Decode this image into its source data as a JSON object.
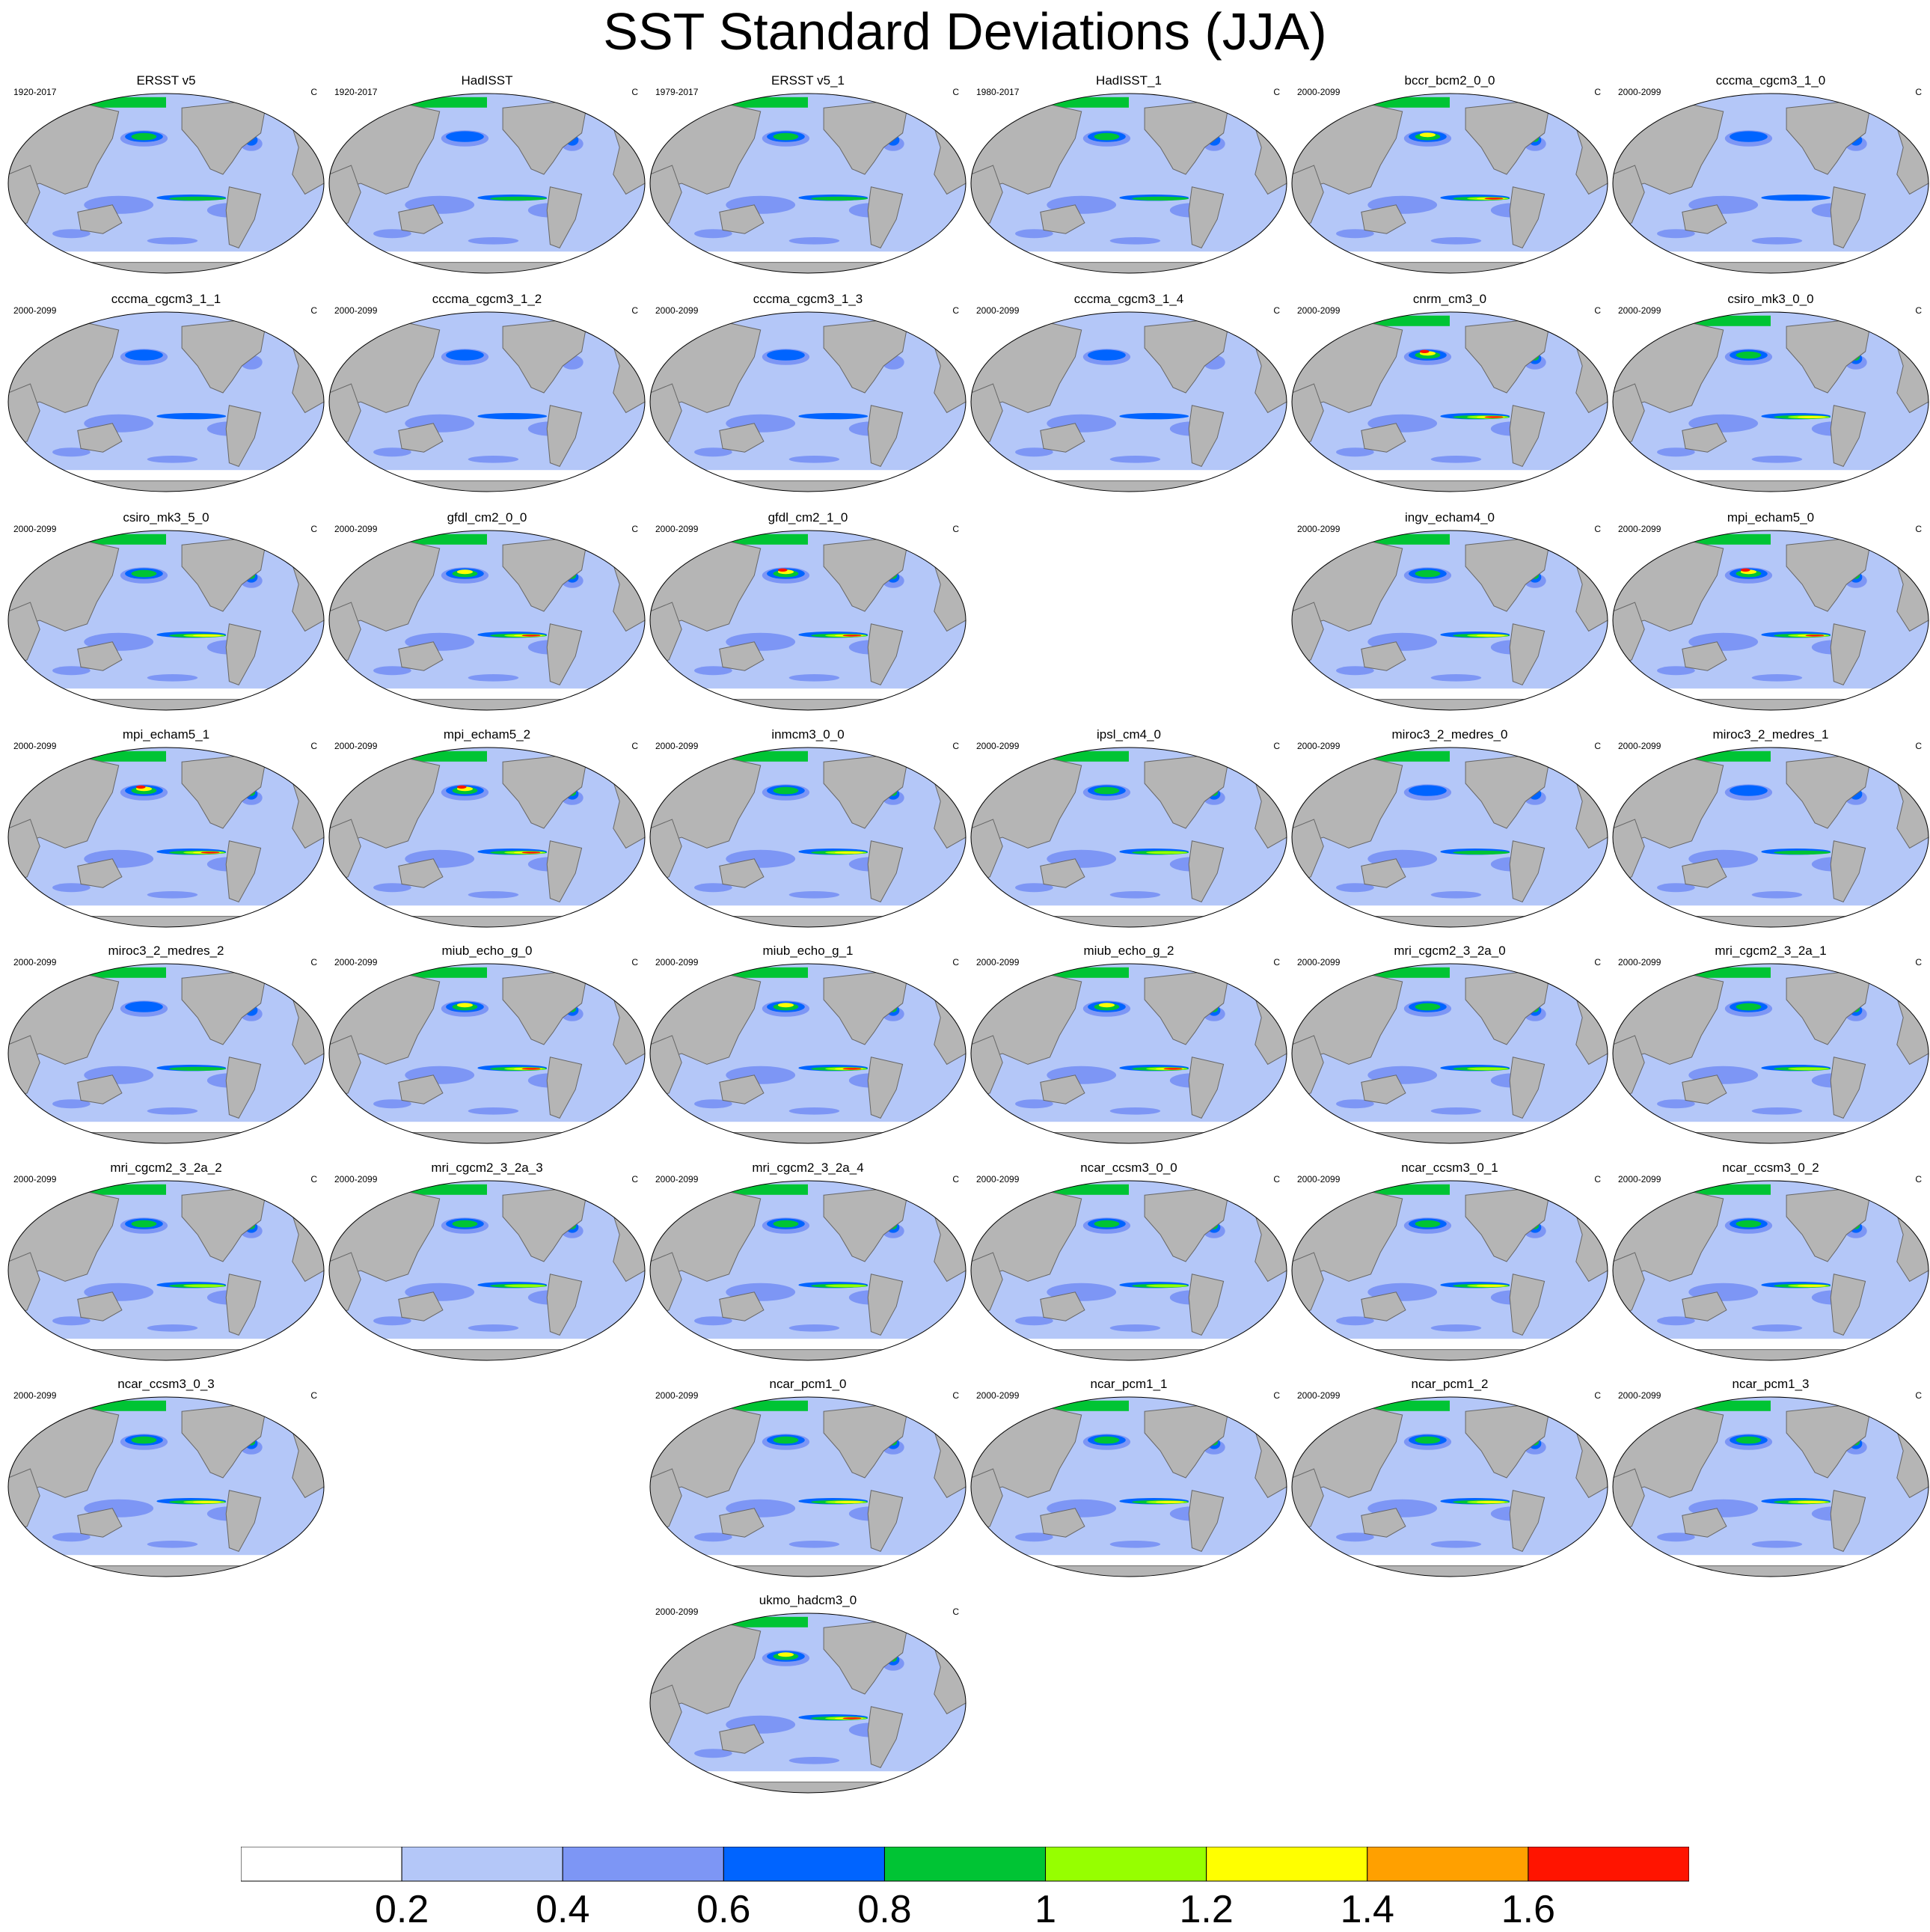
{
  "title": "SST Standard Deviations (JJA)",
  "chart_data": {
    "type": "heatmap",
    "title": "SST Standard Deviations (JJA)",
    "units": "C",
    "colorbar": {
      "levels": [
        0.2,
        0.4,
        0.6,
        0.8,
        1,
        1.2,
        1.4,
        1.6
      ],
      "labels": [
        "0.2",
        "0.4",
        "0.6",
        "0.8",
        "1",
        "1.2",
        "1.4",
        "1.6"
      ],
      "colors": [
        "#ffffff",
        "#b4c7f8",
        "#7d96f5",
        "#0064ff",
        "#00c434",
        "#96ff00",
        "#ffff00",
        "#ffa000",
        "#ff1400"
      ]
    },
    "panels": [
      {
        "name": "ERSST v5",
        "period": "1920-2017",
        "units": "C",
        "row": 0,
        "col": 0,
        "intensity": 0.55
      },
      {
        "name": "HadISST",
        "period": "1920-2017",
        "units": "C",
        "row": 0,
        "col": 1,
        "intensity": 0.45
      },
      {
        "name": "ERSST v5_1",
        "period": "1979-2017",
        "units": "C",
        "row": 0,
        "col": 2,
        "intensity": 0.55
      },
      {
        "name": "HadISST_1",
        "period": "1980-2017",
        "units": "C",
        "row": 0,
        "col": 3,
        "intensity": 0.55
      },
      {
        "name": "bccr_bcm2_0_0",
        "period": "2000-2099",
        "units": "C",
        "row": 0,
        "col": 4,
        "intensity": 0.85
      },
      {
        "name": "cccma_cgcm3_1_0",
        "period": "2000-2099",
        "units": "C",
        "row": 0,
        "col": 5,
        "intensity": 0.4
      },
      {
        "name": "cccma_cgcm3_1_1",
        "period": "2000-2099",
        "units": "C",
        "row": 1,
        "col": 0,
        "intensity": 0.35
      },
      {
        "name": "cccma_cgcm3_1_2",
        "period": "2000-2099",
        "units": "C",
        "row": 1,
        "col": 1,
        "intensity": 0.35
      },
      {
        "name": "cccma_cgcm3_1_3",
        "period": "2000-2099",
        "units": "C",
        "row": 1,
        "col": 2,
        "intensity": 0.35
      },
      {
        "name": "cccma_cgcm3_1_4",
        "period": "2000-2099",
        "units": "C",
        "row": 1,
        "col": 3,
        "intensity": 0.35
      },
      {
        "name": "cnrm_cm3_0",
        "period": "2000-2099",
        "units": "C",
        "row": 1,
        "col": 4,
        "intensity": 0.95
      },
      {
        "name": "csiro_mk3_0_0",
        "period": "2000-2099",
        "units": "C",
        "row": 1,
        "col": 5,
        "intensity": 0.7
      },
      {
        "name": "csiro_mk3_5_0",
        "period": "2000-2099",
        "units": "C",
        "row": 2,
        "col": 0,
        "intensity": 0.75
      },
      {
        "name": "gfdl_cm2_0_0",
        "period": "2000-2099",
        "units": "C",
        "row": 2,
        "col": 1,
        "intensity": 0.85
      },
      {
        "name": "gfdl_cm2_1_0",
        "period": "2000-2099",
        "units": "C",
        "row": 2,
        "col": 2,
        "intensity": 0.9
      },
      {
        "name": "ingv_echam4_0",
        "period": "2000-2099",
        "units": "C",
        "row": 2,
        "col": 4,
        "intensity": 0.7
      },
      {
        "name": "mpi_echam5_0",
        "period": "2000-2099",
        "units": "C",
        "row": 2,
        "col": 5,
        "intensity": 0.95
      },
      {
        "name": "mpi_echam5_1",
        "period": "2000-2099",
        "units": "C",
        "row": 3,
        "col": 0,
        "intensity": 0.95
      },
      {
        "name": "mpi_echam5_2",
        "period": "2000-2099",
        "units": "C",
        "row": 3,
        "col": 1,
        "intensity": 0.95
      },
      {
        "name": "inmcm3_0_0",
        "period": "2000-2099",
        "units": "C",
        "row": 3,
        "col": 2,
        "intensity": 0.75
      },
      {
        "name": "ipsl_cm4_0",
        "period": "2000-2099",
        "units": "C",
        "row": 3,
        "col": 3,
        "intensity": 0.6
      },
      {
        "name": "miroc3_2_medres_0",
        "period": "2000-2099",
        "units": "C",
        "row": 3,
        "col": 4,
        "intensity": 0.45
      },
      {
        "name": "miroc3_2_medres_1",
        "period": "2000-2099",
        "units": "C",
        "row": 3,
        "col": 5,
        "intensity": 0.45
      },
      {
        "name": "miroc3_2_medres_2",
        "period": "2000-2099",
        "units": "C",
        "row": 4,
        "col": 0,
        "intensity": 0.45
      },
      {
        "name": "miub_echo_g_0",
        "period": "2000-2099",
        "units": "C",
        "row": 4,
        "col": 1,
        "intensity": 0.8
      },
      {
        "name": "miub_echo_g_1",
        "period": "2000-2099",
        "units": "C",
        "row": 4,
        "col": 2,
        "intensity": 0.85
      },
      {
        "name": "miub_echo_g_2",
        "period": "2000-2099",
        "units": "C",
        "row": 4,
        "col": 3,
        "intensity": 0.8
      },
      {
        "name": "mri_cgcm2_3_2a_0",
        "period": "2000-2099",
        "units": "C",
        "row": 4,
        "col": 4,
        "intensity": 0.65
      },
      {
        "name": "mri_cgcm2_3_2a_1",
        "period": "2000-2099",
        "units": "C",
        "row": 4,
        "col": 5,
        "intensity": 0.65
      },
      {
        "name": "mri_cgcm2_3_2a_2",
        "period": "2000-2099",
        "units": "C",
        "row": 5,
        "col": 0,
        "intensity": 0.65
      },
      {
        "name": "mri_cgcm2_3_2a_3",
        "period": "2000-2099",
        "units": "C",
        "row": 5,
        "col": 1,
        "intensity": 0.65
      },
      {
        "name": "mri_cgcm2_3_2a_4",
        "period": "2000-2099",
        "units": "C",
        "row": 5,
        "col": 2,
        "intensity": 0.65
      },
      {
        "name": "ncar_ccsm3_0_0",
        "period": "2000-2099",
        "units": "C",
        "row": 5,
        "col": 3,
        "intensity": 0.65
      },
      {
        "name": "ncar_ccsm3_0_1",
        "period": "2000-2099",
        "units": "C",
        "row": 5,
        "col": 4,
        "intensity": 0.7
      },
      {
        "name": "ncar_ccsm3_0_2",
        "period": "2000-2099",
        "units": "C",
        "row": 5,
        "col": 5,
        "intensity": 0.7
      },
      {
        "name": "ncar_ccsm3_0_3",
        "period": "2000-2099",
        "units": "C",
        "row": 6,
        "col": 0,
        "intensity": 0.7
      },
      {
        "name": "ncar_pcm1_0",
        "period": "2000-2099",
        "units": "C",
        "row": 6,
        "col": 2,
        "intensity": 0.7
      },
      {
        "name": "ncar_pcm1_1",
        "period": "2000-2099",
        "units": "C",
        "row": 6,
        "col": 3,
        "intensity": 0.7
      },
      {
        "name": "ncar_pcm1_2",
        "period": "2000-2099",
        "units": "C",
        "row": 6,
        "col": 4,
        "intensity": 0.7
      },
      {
        "name": "ncar_pcm1_3",
        "period": "2000-2099",
        "units": "C",
        "row": 6,
        "col": 5,
        "intensity": 0.7
      },
      {
        "name": "ukmo_hadcm3_0",
        "period": "2000-2099",
        "units": "C",
        "row": 7,
        "col": 2,
        "intensity": 0.8
      }
    ]
  }
}
